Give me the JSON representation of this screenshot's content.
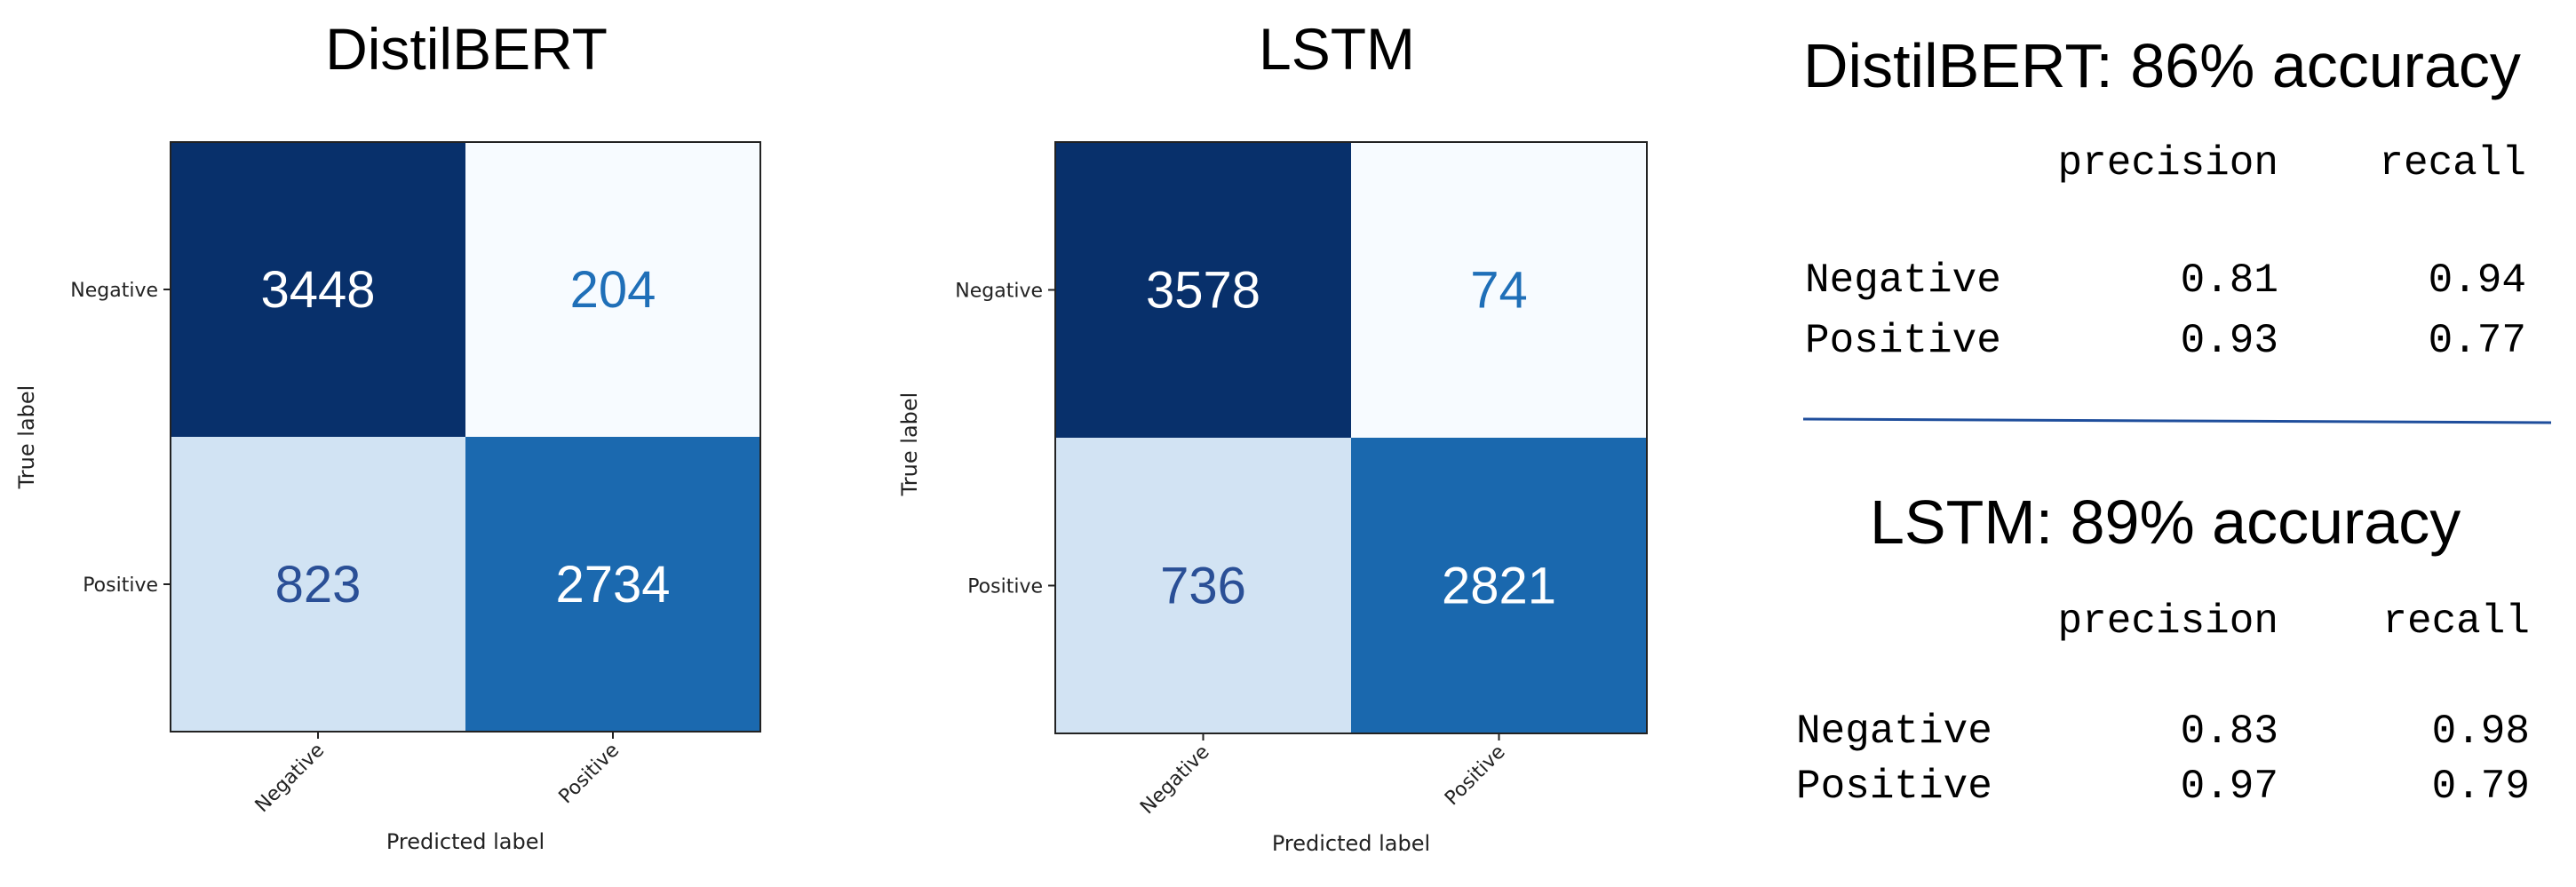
{
  "chart_data": [
    {
      "type": "heatmap",
      "title": "DistilBERT",
      "xlabel": "Predicted label",
      "ylabel": "True label",
      "x_categories": [
        "Negative",
        "Positive"
      ],
      "y_categories": [
        "Negative",
        "Positive"
      ],
      "values": [
        [
          3448,
          204
        ],
        [
          823,
          2734
        ]
      ],
      "colormap": "Blues"
    },
    {
      "type": "heatmap",
      "title": "LSTM",
      "xlabel": "Predicted label",
      "ylabel": "True label",
      "x_categories": [
        "Negative",
        "Positive"
      ],
      "y_categories": [
        "Negative",
        "Positive"
      ],
      "values": [
        [
          3578,
          74
        ],
        [
          736,
          2821
        ]
      ],
      "colormap": "Blues"
    },
    {
      "type": "table",
      "title": "DistilBERT: 86% accuracy",
      "columns": [
        "precision",
        "recall"
      ],
      "rows": [
        {
          "label": "Negative",
          "values": [
            "0.81",
            "0.94"
          ]
        },
        {
          "label": "Positive",
          "values": [
            "0.93",
            "0.77"
          ]
        }
      ]
    },
    {
      "type": "table",
      "title": "LSTM: 89% accuracy",
      "columns": [
        "precision",
        "recall"
      ],
      "rows": [
        {
          "label": "Negative",
          "values": [
            "0.83",
            "0.98"
          ]
        },
        {
          "label": "Positive",
          "values": [
            "0.97",
            "0.79"
          ]
        }
      ]
    }
  ],
  "colors": {
    "divider": "#1f4e9c",
    "text_dark_bg": "#ffffff",
    "text_light_bg_top": "#1f6fb8",
    "text_light_bg_bottom": "#2a4f96"
  }
}
